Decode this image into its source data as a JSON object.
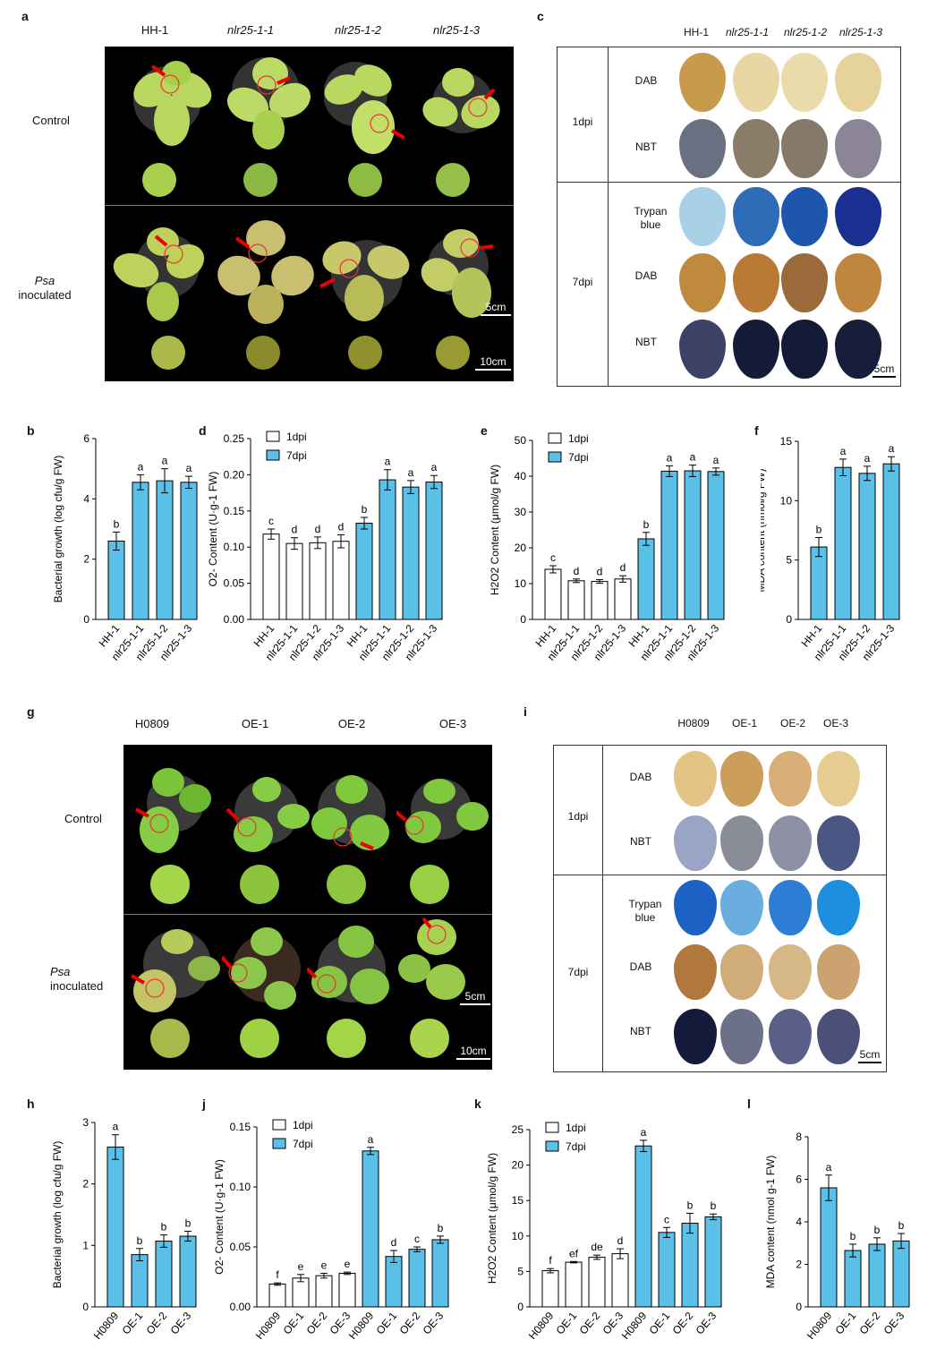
{
  "panels": {
    "a": {
      "label": "a",
      "headers": [
        "HH-1",
        "nlr25-1-1",
        "nlr25-1-2",
        "nlr25-1-3"
      ],
      "row1": "Control",
      "row2_it": "Psa",
      "row2": "inoculated",
      "scale1": "5cm",
      "scale2": "10cm"
    },
    "c": {
      "label": "c",
      "headers": [
        "HH-1",
        "nlr25-1-1",
        "nlr25-1-2",
        "nlr25-1-3"
      ],
      "t1": "1dpi",
      "t2": "7dpi",
      "stains1": [
        "DAB",
        "NBT"
      ],
      "stains2": [
        "Trypan\nblue",
        "DAB",
        "NBT"
      ],
      "scale": "5cm"
    },
    "g": {
      "label": "g",
      "headers": [
        "H0809",
        "OE-1",
        "OE-2",
        "OE-3"
      ],
      "row1": "Control",
      "row2_it": "Psa",
      "row2": "inoculated",
      "scale1": "5cm",
      "scale2": "10cm"
    },
    "i": {
      "label": "i",
      "headers": [
        "H0809",
        "OE-1",
        "OE-2",
        "OE-3"
      ],
      "t1": "1dpi",
      "t2": "7dpi",
      "stains1": [
        "DAB",
        "NBT"
      ],
      "stains2": [
        "Trypan\nblue",
        "DAB",
        "NBT"
      ],
      "scale": "5cm"
    }
  },
  "colors": {
    "bar_blue": "#5bc0e8",
    "bar_white": "#ffffff",
    "photo_bg": "#000000"
  },
  "chart_data": [
    {
      "id": "b",
      "label": "b",
      "type": "bar",
      "categories": [
        "HH-1",
        "nlr25-1-1",
        "nlr25-1-2",
        "nlr25-1-3"
      ],
      "values": [
        2.6,
        4.55,
        4.6,
        4.55
      ],
      "errors": [
        0.3,
        0.25,
        0.4,
        0.2
      ],
      "letters": [
        "b",
        "a",
        "a",
        "a"
      ],
      "ylabel": "Bacterial growth (log cfu/g FW)",
      "ylim": [
        0,
        6
      ],
      "ticks": [
        "0",
        "2",
        "4",
        "6"
      ],
      "legend": []
    },
    {
      "id": "d",
      "label": "d",
      "type": "bar",
      "categories": [
        "HH-1",
        "nlr25-1-1",
        "nlr25-1-2",
        "nlr25-1-3",
        "HH-1",
        "nlr25-1-1",
        "nlr25-1-2",
        "nlr25-1-3"
      ],
      "values": [
        0.118,
        0.105,
        0.106,
        0.108,
        0.133,
        0.193,
        0.183,
        0.19
      ],
      "errors": [
        0.007,
        0.008,
        0.008,
        0.009,
        0.008,
        0.014,
        0.009,
        0.009
      ],
      "letters": [
        "c",
        "d",
        "d",
        "d",
        "b",
        "a",
        "a",
        "a"
      ],
      "ylabel": "O2- Content (U·g-1 FW)",
      "ylim": [
        0,
        0.25
      ],
      "ticks": [
        "0.00",
        "0.05",
        "0.10",
        "0.15",
        "0.20",
        "0.25"
      ],
      "legend": [
        "1dpi",
        "7dpi"
      ],
      "groups": [
        {
          "name": "1dpi",
          "count": 4
        },
        {
          "name": "7dpi",
          "count": 4
        }
      ]
    },
    {
      "id": "e",
      "label": "e",
      "type": "bar",
      "categories": [
        "HH-1",
        "nlr25-1-1",
        "nlr25-1-2",
        "nlr25-1-3",
        "HH-1",
        "nlr25-1-1",
        "nlr25-1-2",
        "nlr25-1-3"
      ],
      "values": [
        14,
        10.8,
        10.6,
        11.3,
        22.5,
        41.4,
        41.5,
        41.3
      ],
      "errors": [
        1.0,
        0.5,
        0.5,
        0.9,
        1.8,
        1.5,
        1.6,
        1.0
      ],
      "letters": [
        "c",
        "d",
        "d",
        "d",
        "b",
        "a",
        "a",
        "a"
      ],
      "ylabel": "H2O2 Content (μmol/g FW)",
      "ylim": [
        0,
        50
      ],
      "ticks": [
        "0",
        "10",
        "20",
        "30",
        "40",
        "50"
      ],
      "legend": [
        "1dpi",
        "7dpi"
      ],
      "groups": [
        {
          "name": "1dpi",
          "count": 4
        },
        {
          "name": "7dpi",
          "count": 4
        }
      ]
    },
    {
      "id": "f",
      "label": "f",
      "type": "bar",
      "categories": [
        "HH-1",
        "nlr25-1-1",
        "nlr25-1-2",
        "nlr25-1-3"
      ],
      "values": [
        6.1,
        12.8,
        12.3,
        13.1
      ],
      "errors": [
        0.8,
        0.7,
        0.6,
        0.6
      ],
      "letters": [
        "b",
        "a",
        "a",
        "a"
      ],
      "ylabel": "MDA content (nmol/g FW)",
      "ylim": [
        0,
        15
      ],
      "ticks": [
        "0",
        "5",
        "10",
        "15"
      ],
      "legend": []
    },
    {
      "id": "h",
      "label": "h",
      "type": "bar",
      "categories": [
        "H0809",
        "OE-1",
        "OE-2",
        "OE-3"
      ],
      "values": [
        2.6,
        0.85,
        1.07,
        1.15
      ],
      "errors": [
        0.2,
        0.1,
        0.1,
        0.08
      ],
      "letters": [
        "a",
        "b",
        "b",
        "b"
      ],
      "ylabel": "Bacterial growth (log cfu/g FW)",
      "ylim": [
        0,
        3
      ],
      "ticks": [
        "0",
        "1",
        "2",
        "3"
      ],
      "legend": []
    },
    {
      "id": "j",
      "label": "j",
      "type": "bar",
      "categories": [
        "H0809",
        "OE-1",
        "OE-2",
        "OE-3",
        "H0809",
        "OE-1",
        "OE-2",
        "OE-3"
      ],
      "values": [
        0.019,
        0.024,
        0.026,
        0.028,
        0.13,
        0.042,
        0.048,
        0.056
      ],
      "errors": [
        0.001,
        0.003,
        0.002,
        0.001,
        0.003,
        0.005,
        0.002,
        0.003
      ],
      "letters": [
        "f",
        "e",
        "e",
        "e",
        "a",
        "d",
        "c",
        "b"
      ],
      "ylabel": "O2- Content (U·g-1 FW)",
      "ylim": [
        0,
        0.15
      ],
      "ticks": [
        "0.00",
        "0.05",
        "0.10",
        "0.15"
      ],
      "legend": [
        "1dpi",
        "7dpi"
      ],
      "groups": [
        {
          "name": "1dpi",
          "count": 4
        },
        {
          "name": "7dpi",
          "count": 4
        }
      ]
    },
    {
      "id": "k",
      "label": "k",
      "type": "bar",
      "categories": [
        "H0809",
        "OE-1",
        "OE-2",
        "OE-3",
        "H0809",
        "OE-1",
        "OE-2",
        "OE-3"
      ],
      "values": [
        5.1,
        6.3,
        7.0,
        7.5,
        22.7,
        10.5,
        11.8,
        12.7
      ],
      "errors": [
        0.3,
        0.1,
        0.3,
        0.7,
        0.8,
        0.7,
        1.4,
        0.4
      ],
      "letters": [
        "f",
        "ef",
        "de",
        "d",
        "a",
        "c",
        "b",
        "b"
      ],
      "ylabel": "H2O2 Content (μmol/g FW)",
      "ylim": [
        0,
        25
      ],
      "ticks": [
        "0",
        "5",
        "10",
        "15",
        "20",
        "25"
      ],
      "legend": [
        "1dpi",
        "7dpi"
      ],
      "groups": [
        {
          "name": "1dpi",
          "count": 4
        },
        {
          "name": "7dpi",
          "count": 4
        }
      ]
    },
    {
      "id": "l",
      "label": "l",
      "type": "bar",
      "categories": [
        "H0809",
        "OE-1",
        "OE-2",
        "OE-3"
      ],
      "values": [
        5.6,
        2.65,
        2.95,
        3.1
      ],
      "errors": [
        0.6,
        0.3,
        0.3,
        0.35
      ],
      "letters": [
        "a",
        "b",
        "b",
        "b"
      ],
      "ylabel": "MDA content (nmol g-1 FW)",
      "ylim": [
        0,
        8
      ],
      "ticks": [
        "0",
        "2",
        "4",
        "6",
        "8"
      ],
      "legend": []
    }
  ]
}
